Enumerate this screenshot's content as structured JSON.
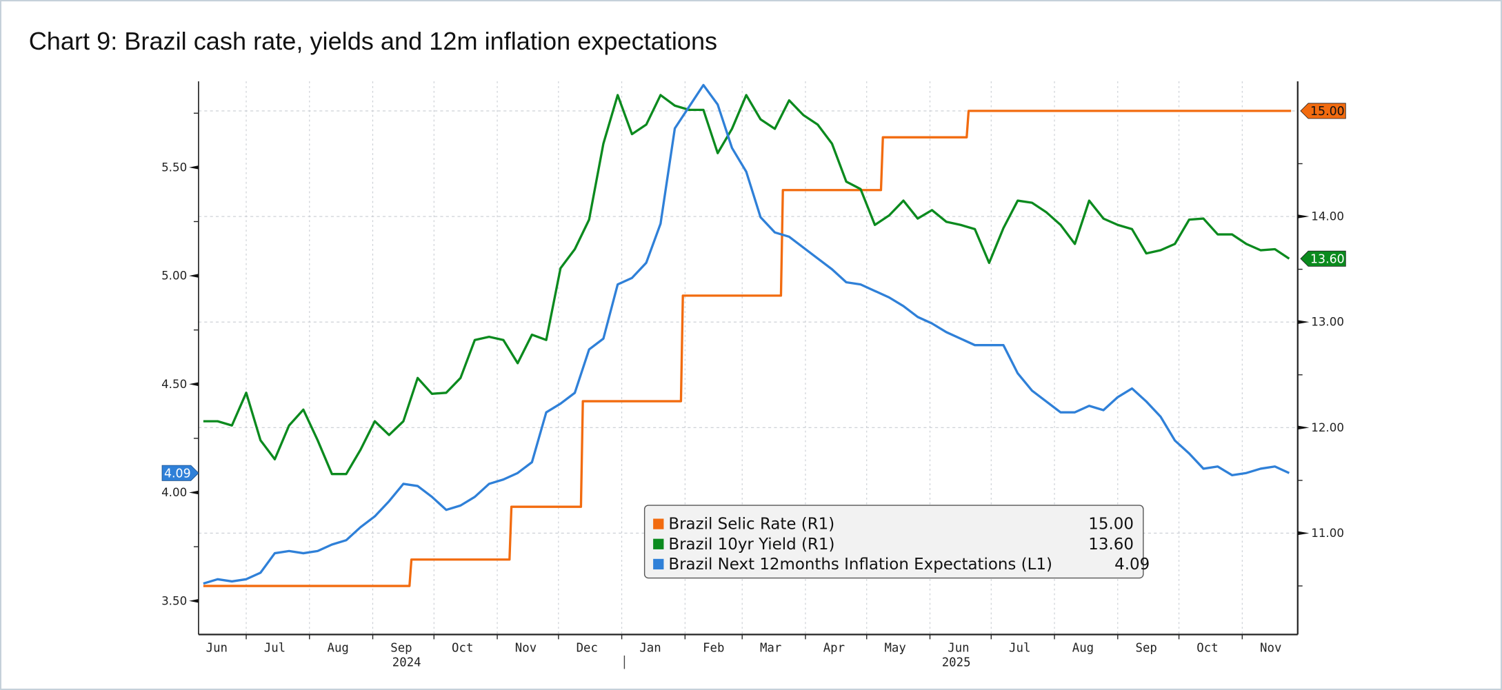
{
  "chart_data": {
    "type": "line",
    "title": "Chart 9: Brazil cash rate, yields and 12m inflation expectations",
    "x_range": [
      "2024-06-08",
      "2025-11-29"
    ],
    "x_month_labels": [
      {
        "date": "2024-06",
        "label": "Jun"
      },
      {
        "date": "2024-07",
        "label": "Jul"
      },
      {
        "date": "2024-08",
        "label": "Aug"
      },
      {
        "date": "2024-09",
        "label": "Sep"
      },
      {
        "date": "2024-10",
        "label": "Oct"
      },
      {
        "date": "2024-11",
        "label": "Nov"
      },
      {
        "date": "2024-12",
        "label": "Dec"
      },
      {
        "date": "2025-01",
        "label": "Jan"
      },
      {
        "date": "2025-02",
        "label": "Feb"
      },
      {
        "date": "2025-03",
        "label": "Mar"
      },
      {
        "date": "2025-04",
        "label": "Apr"
      },
      {
        "date": "2025-05",
        "label": "May"
      },
      {
        "date": "2025-06",
        "label": "Jun"
      },
      {
        "date": "2025-07",
        "label": "Jul"
      },
      {
        "date": "2025-08",
        "label": "Aug"
      },
      {
        "date": "2025-09",
        "label": "Sep"
      },
      {
        "date": "2025-10",
        "label": "Oct"
      },
      {
        "date": "2025-11",
        "label": "Nov"
      }
    ],
    "x_year_labels": [
      "2024",
      "2025"
    ],
    "left_axis": {
      "ylim": [
        3.345,
        5.897
      ],
      "ticks": [
        "3.50",
        "4.00",
        "4.50",
        "5.00",
        "5.50"
      ]
    },
    "right_axis": {
      "ylim": [
        10.04,
        15.28
      ],
      "ticks": [
        "11.00",
        "12.00",
        "13.00",
        "14.00"
      ]
    },
    "grid": true,
    "legend_placement": "bottom-center",
    "dates": [
      "2024-06-10",
      "2024-06-17",
      "2024-06-24",
      "2024-07-01",
      "2024-07-08",
      "2024-07-15",
      "2024-07-22",
      "2024-07-29",
      "2024-08-05",
      "2024-08-12",
      "2024-08-19",
      "2024-08-26",
      "2024-09-02",
      "2024-09-09",
      "2024-09-16",
      "2024-09-23",
      "2024-09-30",
      "2024-10-07",
      "2024-10-14",
      "2024-10-21",
      "2024-10-28",
      "2024-11-04",
      "2024-11-11",
      "2024-11-18",
      "2024-11-25",
      "2024-12-02",
      "2024-12-09",
      "2024-12-16",
      "2024-12-23",
      "2024-12-30",
      "2025-01-06",
      "2025-01-13",
      "2025-01-20",
      "2025-01-27",
      "2025-02-03",
      "2025-02-10",
      "2025-02-17",
      "2025-02-24",
      "2025-03-03",
      "2025-03-10",
      "2025-03-17",
      "2025-03-24",
      "2025-03-31",
      "2025-04-07",
      "2025-04-14",
      "2025-04-21",
      "2025-04-28",
      "2025-05-05",
      "2025-05-12",
      "2025-05-19",
      "2025-05-26",
      "2025-06-02",
      "2025-06-09",
      "2025-06-16",
      "2025-06-23",
      "2025-06-30",
      "2025-07-07",
      "2025-07-14",
      "2025-07-21",
      "2025-07-28",
      "2025-08-04",
      "2025-08-11",
      "2025-08-18",
      "2025-08-25",
      "2025-09-01",
      "2025-09-08",
      "2025-09-15",
      "2025-09-22",
      "2025-09-29",
      "2025-10-06",
      "2025-10-13",
      "2025-10-20",
      "2025-10-27",
      "2025-11-03",
      "2025-11-10",
      "2025-11-17",
      "2025-11-24"
    ],
    "series": [
      {
        "name": "Brazil Selic Rate (R1)",
        "axis": "right",
        "color": "#f26b0f",
        "step": true,
        "last": "15.00",
        "points": [
          [
            "2024-06-10",
            10.5
          ],
          [
            "2024-09-19",
            10.75
          ],
          [
            "2024-11-07",
            11.25
          ],
          [
            "2024-12-12",
            12.25
          ],
          [
            "2025-01-30",
            13.25
          ],
          [
            "2025-03-20",
            14.25
          ],
          [
            "2025-05-08",
            14.75
          ],
          [
            "2025-06-19",
            15.0
          ],
          [
            "2025-11-24",
            15.0
          ]
        ]
      },
      {
        "name": "Brazil 10yr Yield (R1)",
        "axis": "right",
        "color": "#0b8a1e",
        "last": "13.60",
        "values": [
          12.06,
          12.06,
          12.02,
          12.33,
          11.88,
          11.7,
          12.02,
          12.17,
          11.88,
          11.56,
          11.56,
          11.79,
          12.06,
          11.93,
          12.06,
          12.47,
          12.32,
          12.33,
          12.47,
          12.83,
          12.86,
          12.83,
          12.61,
          12.88,
          12.83,
          13.51,
          13.69,
          13.97,
          14.69,
          15.15,
          14.78,
          14.87,
          15.15,
          15.05,
          15.01,
          15.01,
          14.6,
          14.83,
          15.15,
          14.92,
          14.83,
          15.1,
          14.96,
          14.87,
          14.69,
          14.33,
          14.26,
          13.92,
          14.01,
          14.15,
          13.98,
          14.06,
          13.95,
          13.92,
          13.88,
          13.56,
          13.89,
          14.15,
          14.13,
          14.04,
          13.92,
          13.74,
          14.15,
          13.98,
          13.92,
          13.88,
          13.65,
          13.68,
          13.74,
          13.97,
          13.98,
          13.83,
          13.83,
          13.74,
          13.68,
          13.69,
          13.6
        ]
      },
      {
        "name": "Brazil Next 12months Inflation Expectations (L1)",
        "axis": "left",
        "color": "#2f80d8",
        "last": "4.09",
        "values": [
          3.58,
          3.6,
          3.59,
          3.6,
          3.63,
          3.72,
          3.73,
          3.72,
          3.73,
          3.76,
          3.78,
          3.84,
          3.89,
          3.96,
          4.04,
          4.03,
          3.98,
          3.92,
          3.94,
          3.98,
          4.04,
          4.06,
          4.09,
          4.14,
          4.37,
          4.41,
          4.46,
          4.66,
          4.71,
          4.96,
          4.99,
          5.06,
          5.24,
          5.68,
          5.78,
          5.88,
          5.79,
          5.59,
          5.48,
          5.27,
          5.2,
          5.18,
          5.13,
          5.08,
          5.03,
          4.97,
          4.96,
          4.93,
          4.9,
          4.86,
          4.81,
          4.78,
          4.74,
          4.71,
          4.68,
          4.68,
          4.68,
          4.55,
          4.47,
          4.42,
          4.37,
          4.37,
          4.4,
          4.38,
          4.44,
          4.48,
          4.42,
          4.35,
          4.24,
          4.18,
          4.11,
          4.12,
          4.08,
          4.09,
          4.11,
          4.12,
          4.09
        ]
      }
    ],
    "legend": [
      {
        "label": "Brazil Selic Rate (R1)",
        "value": "15.00",
        "color": "#f26b0f"
      },
      {
        "label": "Brazil 10yr Yield (R1)",
        "value": "13.60",
        "color": "#0b8a1e"
      },
      {
        "label": "Brazil Next 12months Inflation Expectations (L1)",
        "value": "4.09",
        "color": "#2f80d8"
      }
    ]
  }
}
